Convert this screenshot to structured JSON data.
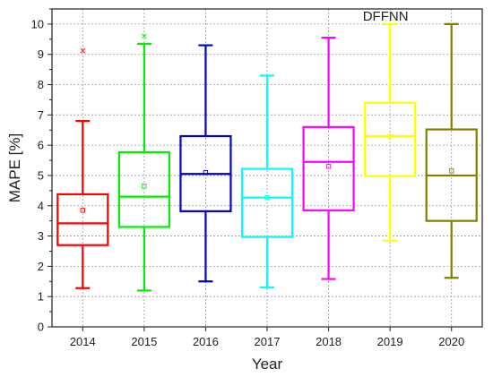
{
  "chart_data": {
    "type": "boxplot",
    "annotation": "DFFNN",
    "xlabel": "Year",
    "ylabel": "MAPE [%]",
    "ylim": [
      0,
      10.5
    ],
    "yticks": [
      0,
      1,
      2,
      3,
      4,
      5,
      6,
      7,
      8,
      9,
      10
    ],
    "grid": true,
    "legend": "none",
    "categories": [
      "2014",
      "2015",
      "2016",
      "2017",
      "2018",
      "2019",
      "2020"
    ],
    "boxes": [
      {
        "category": "2014",
        "min": 1.28,
        "q1": 2.7,
        "median": 3.42,
        "q3": 4.38,
        "max": 6.8,
        "mean": 3.85,
        "outliers": [
          9.12
        ],
        "color": "#ff0000"
      },
      {
        "category": "2015",
        "min": 1.2,
        "q1": 3.3,
        "median": 4.3,
        "q3": 5.77,
        "max": 9.35,
        "mean": 4.65,
        "outliers": [
          9.6
        ],
        "color": "#00ee00"
      },
      {
        "category": "2016",
        "min": 1.5,
        "q1": 3.82,
        "median": 5.05,
        "q3": 6.3,
        "max": 9.3,
        "mean": 5.1,
        "outliers": [],
        "color": "#0000cc"
      },
      {
        "category": "2017",
        "min": 1.3,
        "q1": 2.97,
        "median": 4.27,
        "q3": 5.22,
        "max": 8.3,
        "mean": 4.27,
        "outliers": [],
        "color": "#00ffff"
      },
      {
        "category": "2018",
        "min": 1.58,
        "q1": 3.85,
        "median": 5.45,
        "q3": 6.6,
        "max": 9.55,
        "mean": 5.3,
        "outliers": [],
        "color": "#ff00ff"
      },
      {
        "category": "2019",
        "min": 2.85,
        "q1": 4.98,
        "median": 6.3,
        "q3": 7.4,
        "max": 10.0,
        "mean": 6.3,
        "outliers": [],
        "color": "#ffff00"
      },
      {
        "category": "2020",
        "min": 1.62,
        "q1": 3.5,
        "median": 5.0,
        "q3": 6.52,
        "max": 10.0,
        "mean": 5.15,
        "outliers": [],
        "color": "#808000"
      }
    ]
  }
}
